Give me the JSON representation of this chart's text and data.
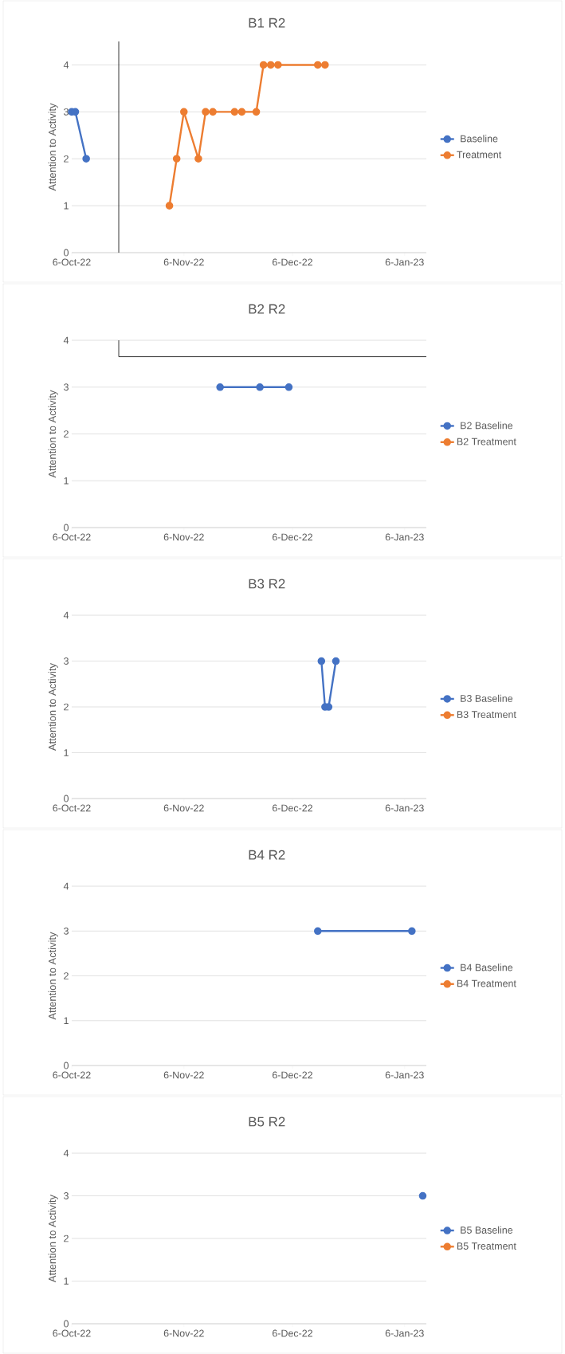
{
  "chart_data": [
    {
      "type": "line",
      "title": "B1 R2",
      "ylabel": "Attention to Activity",
      "xlim": [
        "2022-10-06",
        "2023-01-12"
      ],
      "xticks": [
        {
          "value": "2022-10-06",
          "label": "6-Oct-22"
        },
        {
          "value": "2022-11-06",
          "label": "6-Nov-22"
        },
        {
          "value": "2022-12-06",
          "label": "6-Dec-22"
        },
        {
          "value": "2023-01-06",
          "label": "6-Jan-23"
        }
      ],
      "ylim": [
        0,
        4.5
      ],
      "yticks": [
        0,
        1,
        2,
        3,
        4
      ],
      "grid": "y",
      "legend": "right",
      "marker": "circle",
      "line_style": "solid",
      "ref_lines": [
        {
          "axis": "x",
          "value": "2022-10-19",
          "color": "#000000"
        }
      ],
      "series": [
        {
          "name": "Baseline",
          "color": "#4472c4",
          "x": [
            "2022-10-06",
            "2022-10-07",
            "2022-10-10"
          ],
          "values": [
            3,
            3,
            2
          ]
        },
        {
          "name": "Treatment",
          "color": "#ed7d31",
          "x": [
            "2022-11-02",
            "2022-11-04",
            "2022-11-06",
            "2022-11-10",
            "2022-11-12",
            "2022-11-14",
            "2022-11-20",
            "2022-11-22",
            "2022-11-26",
            "2022-11-28",
            "2022-11-30",
            "2022-12-02",
            "2022-12-13",
            "2022-12-15"
          ],
          "values": [
            1,
            2,
            3,
            2,
            3,
            3,
            3,
            3,
            3,
            4,
            4,
            4,
            4,
            4
          ]
        }
      ]
    },
    {
      "type": "line",
      "title": "B2 R2",
      "ylabel": "Attention to Activity",
      "xlim": [
        "2022-10-06",
        "2023-01-12"
      ],
      "xticks": [
        {
          "value": "2022-10-06",
          "label": "6-Oct-22"
        },
        {
          "value": "2022-11-06",
          "label": "6-Nov-22"
        },
        {
          "value": "2022-12-06",
          "label": "6-Dec-22"
        },
        {
          "value": "2023-01-06",
          "label": "6-Jan-23"
        }
      ],
      "ylim": [
        0,
        4
      ],
      "yticks": [
        0,
        1,
        2,
        3,
        4
      ],
      "grid": "y",
      "legend": "right",
      "marker": "circle",
      "line_style": "solid",
      "ref_lines": [
        {
          "axis": "y",
          "value": 3.65,
          "color": "#000000"
        }
      ],
      "series": [
        {
          "name": "B2 Baseline",
          "color": "#4472c4",
          "x": [
            "2022-11-16",
            "2022-11-27",
            "2022-12-05"
          ],
          "values": [
            3,
            3,
            3
          ]
        },
        {
          "name": "B2 Treatment",
          "color": "#ed7d31"
        }
      ]
    },
    {
      "type": "line",
      "title": "B3 R2",
      "ylabel": "Attention to Activity",
      "xlim": [
        "2022-10-06",
        "2023-01-12"
      ],
      "xticks": [
        {
          "value": "2022-10-06",
          "label": "6-Oct-22"
        },
        {
          "value": "2022-11-06",
          "label": "6-Nov-22"
        },
        {
          "value": "2022-12-06",
          "label": "6-Dec-22"
        },
        {
          "value": "2023-01-06",
          "label": "6-Jan-23"
        }
      ],
      "ylim": [
        0,
        4
      ],
      "yticks": [
        0,
        1,
        2,
        3,
        4
      ],
      "grid": "y",
      "legend": "right",
      "marker": "circle",
      "line_style": "solid",
      "series": [
        {
          "name": "B3 Baseline",
          "color": "#4472c4",
          "x": [
            "2022-12-14",
            "2022-12-15",
            "2022-12-16",
            "2022-12-18"
          ],
          "values": [
            3,
            2,
            2,
            3
          ]
        },
        {
          "name": "B3 Treatment",
          "color": "#ed7d31"
        }
      ]
    },
    {
      "type": "line",
      "title": "B4 R2",
      "ylabel": "Attention to Activity",
      "xlim": [
        "2022-10-06",
        "2023-01-12"
      ],
      "xticks": [
        {
          "value": "2022-10-06",
          "label": "6-Oct-22"
        },
        {
          "value": "2022-11-06",
          "label": "6-Nov-22"
        },
        {
          "value": "2022-12-06",
          "label": "6-Dec-22"
        },
        {
          "value": "2023-01-06",
          "label": "6-Jan-23"
        }
      ],
      "ylim": [
        0,
        4
      ],
      "yticks": [
        0,
        1,
        2,
        3,
        4
      ],
      "grid": "y",
      "legend": "right",
      "marker": "circle",
      "line_style": "solid",
      "series": [
        {
          "name": "B4 Baseline",
          "color": "#4472c4",
          "x": [
            "2022-12-13",
            "2023-01-08"
          ],
          "values": [
            3,
            3
          ]
        },
        {
          "name": "B4 Treatment",
          "color": "#ed7d31"
        }
      ]
    },
    {
      "type": "line",
      "title": "B5 R2",
      "ylabel": "Attention to Activity",
      "xlim": [
        "2022-10-06",
        "2023-01-12"
      ],
      "xticks": [
        {
          "value": "2022-10-06",
          "label": "6-Oct-22"
        },
        {
          "value": "2022-11-06",
          "label": "6-Nov-22"
        },
        {
          "value": "2022-12-06",
          "label": "6-Dec-22"
        },
        {
          "value": "2023-01-06",
          "label": "6-Jan-23"
        }
      ],
      "ylim": [
        0,
        4
      ],
      "yticks": [
        0,
        1,
        2,
        3,
        4
      ],
      "grid": "y",
      "legend": "right",
      "marker": "circle",
      "line_style": "solid",
      "series": [
        {
          "name": "B5 Baseline",
          "color": "#4472c4",
          "x": [
            "2023-01-11"
          ],
          "values": [
            3
          ]
        },
        {
          "name": "B5 Treatment",
          "color": "#ed7d31"
        }
      ]
    }
  ]
}
